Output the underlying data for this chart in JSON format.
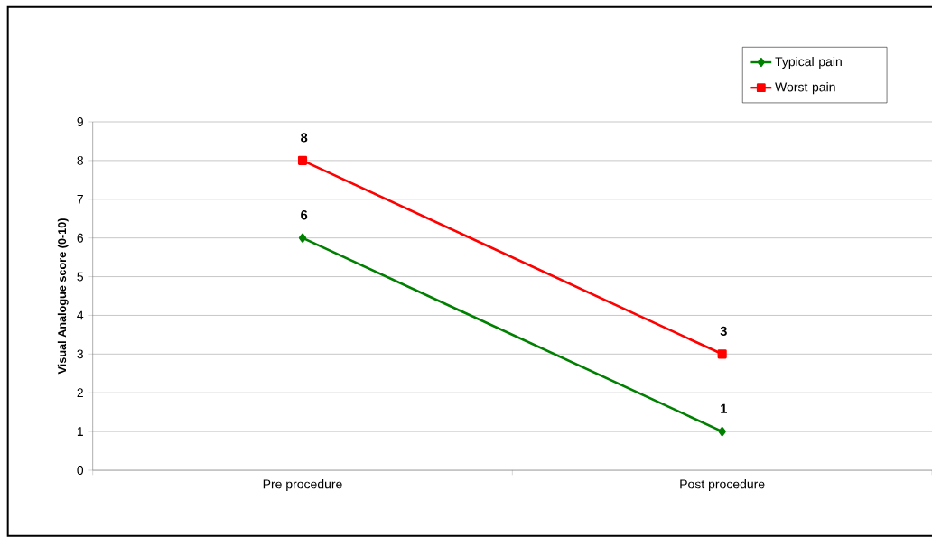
{
  "chart_data": {
    "type": "line",
    "ylabel": "Visual Analogue score (0-10)",
    "categories": [
      "Pre procedure",
      "Post procedure"
    ],
    "series": [
      {
        "name": "Typical pain",
        "color": "#008000",
        "values": [
          6,
          1
        ],
        "marker": "diamond"
      },
      {
        "name": "Worst pain",
        "color": "#ff0000",
        "values": [
          8,
          3
        ],
        "marker": "square"
      }
    ],
    "ylim": [
      0,
      9
    ],
    "yticks": [
      0,
      1,
      2,
      3,
      4,
      5,
      6,
      7,
      8,
      9
    ],
    "grid": "y",
    "legend": "top right",
    "data_labels": true,
    "line_style": "solid"
  }
}
